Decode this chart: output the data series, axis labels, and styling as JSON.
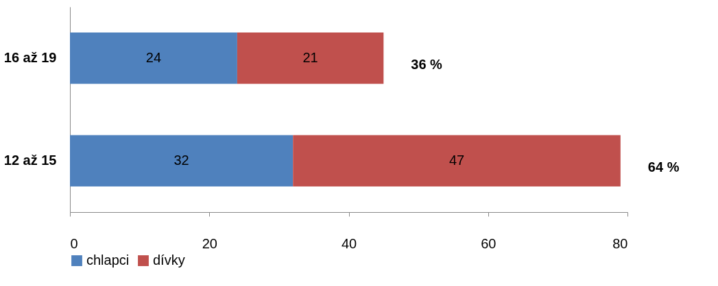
{
  "chart_data": {
    "type": "bar",
    "orientation": "horizontal",
    "stacked": true,
    "categories": [
      "16 až 19",
      "12 až 15"
    ],
    "series": [
      {
        "name": "chlapci",
        "color": "#4f81bd",
        "values": [
          24,
          32
        ]
      },
      {
        "name": "dívky",
        "color": "#c0504d",
        "values": [
          21,
          47
        ]
      }
    ],
    "xlim": [
      0,
      80
    ],
    "xticks": [
      0,
      20,
      40,
      60,
      80
    ],
    "data_labels": true,
    "grid": false,
    "legend": "bottom",
    "annotations": [
      "36 %",
      "64 %"
    ]
  }
}
